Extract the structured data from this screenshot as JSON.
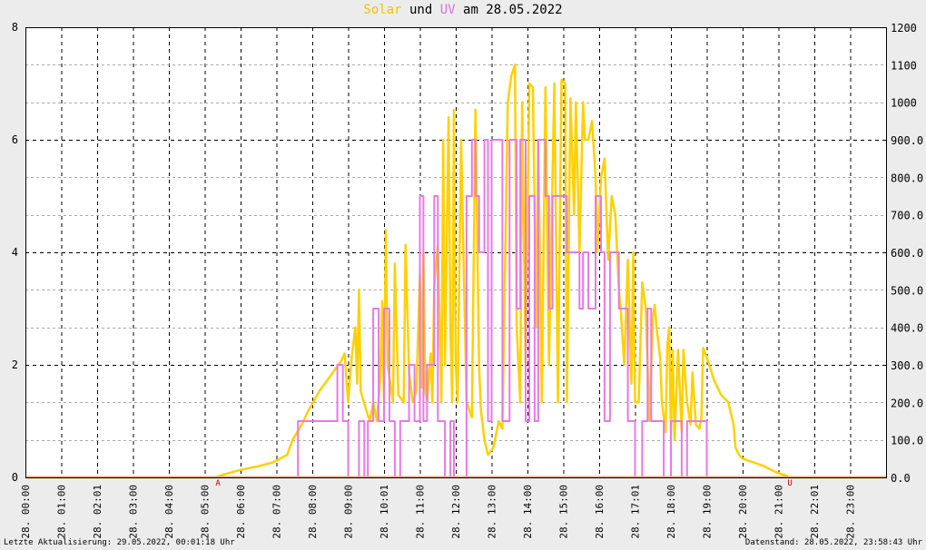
{
  "title": {
    "solar": "Solar",
    "und": "und",
    "uv": "UV",
    "rest": "am 28.05.2022"
  },
  "footer": {
    "left": "Letzte Aktualisierung: 29.05.2022, 00:01:18 Uhr",
    "right": "Datenstand: 28.05.2022, 23:58:43 Uhr"
  },
  "colors": {
    "solar": "#ffd000",
    "uv": "#e878e8",
    "overlap": "#f2a47a",
    "background": "#ececec",
    "plot_background": "#ffffff",
    "grid": "#000000"
  },
  "chart_data": {
    "type": "line",
    "title": "Solar und UV am 28.05.2022",
    "grid": true,
    "x_range_hours": [
      0,
      24
    ],
    "y_left": {
      "min": 0,
      "max": 8,
      "ticks": [
        "0",
        "2",
        "4",
        "6",
        "8"
      ]
    },
    "y_right": {
      "min": 0,
      "max": 1200,
      "ticks": [
        "0.0",
        "100.0",
        "200.0",
        "300.0",
        "400.0",
        "500.0",
        "600.0",
        "700.0",
        "800.0",
        "900.0",
        "1000",
        "1100",
        "1200"
      ]
    },
    "x_tick_labels": [
      "28. 00:00",
      "28. 01:00",
      "28. 02:01",
      "28. 03:00",
      "28. 04:00",
      "28. 05:00",
      "28. 06:00",
      "28. 07:00",
      "28. 08:00",
      "28. 09:00",
      "28. 10:01",
      "28. 11:00",
      "28. 12:00",
      "28. 13:00",
      "28. 14:00",
      "28. 15:00",
      "28. 16:00",
      "28. 17:01",
      "28. 18:00",
      "28. 19:00",
      "28. 20:00",
      "28. 21:00",
      "28. 22:01",
      "28. 23:00"
    ],
    "markers": [
      {
        "label": "A",
        "x_hour": 5.35
      },
      {
        "label": "U",
        "x_hour": 21.3
      }
    ],
    "series": [
      {
        "name": "Solar",
        "axis": "right",
        "color": "#ffd000",
        "points": [
          [
            0,
            0
          ],
          [
            5.3,
            0
          ],
          [
            5.6,
            10
          ],
          [
            6,
            20
          ],
          [
            6.5,
            30
          ],
          [
            6.9,
            40
          ],
          [
            7.1,
            50
          ],
          [
            7.3,
            60
          ],
          [
            7.45,
            100
          ],
          [
            7.7,
            140
          ],
          [
            7.9,
            180
          ],
          [
            8.2,
            230
          ],
          [
            8.5,
            270
          ],
          [
            8.8,
            310
          ],
          [
            8.9,
            330
          ],
          [
            9.0,
            200
          ],
          [
            9.1,
            320
          ],
          [
            9.2,
            400
          ],
          [
            9.25,
            250
          ],
          [
            9.3,
            500
          ],
          [
            9.35,
            230
          ],
          [
            9.5,
            180
          ],
          [
            9.6,
            150
          ],
          [
            9.7,
            200
          ],
          [
            9.8,
            150
          ],
          [
            9.9,
            270
          ],
          [
            9.95,
            470
          ],
          [
            10.0,
            200
          ],
          [
            10.05,
            660
          ],
          [
            10.1,
            300
          ],
          [
            10.25,
            200
          ],
          [
            10.3,
            570
          ],
          [
            10.4,
            220
          ],
          [
            10.55,
            200
          ],
          [
            10.6,
            620
          ],
          [
            10.7,
            280
          ],
          [
            10.8,
            200
          ],
          [
            10.9,
            230
          ],
          [
            11.0,
            540
          ],
          [
            11.05,
            240
          ],
          [
            11.1,
            600
          ],
          [
            11.15,
            230
          ],
          [
            11.2,
            200
          ],
          [
            11.3,
            330
          ],
          [
            11.35,
            200
          ],
          [
            11.4,
            510
          ],
          [
            11.5,
            620
          ],
          [
            11.6,
            200
          ],
          [
            11.65,
            900
          ],
          [
            11.7,
            300
          ],
          [
            11.8,
            960
          ],
          [
            11.85,
            400
          ],
          [
            11.9,
            200
          ],
          [
            11.95,
            980
          ],
          [
            12.0,
            300
          ],
          [
            12.05,
            200
          ],
          [
            12.15,
            900
          ],
          [
            12.3,
            200
          ],
          [
            12.45,
            160
          ],
          [
            12.55,
            980
          ],
          [
            12.65,
            300
          ],
          [
            12.7,
            180
          ],
          [
            12.8,
            100
          ],
          [
            12.9,
            60
          ],
          [
            13.05,
            80
          ],
          [
            13.2,
            150
          ],
          [
            13.3,
            130
          ],
          [
            13.45,
            1000
          ],
          [
            13.55,
            1070
          ],
          [
            13.65,
            1100
          ],
          [
            13.7,
            400
          ],
          [
            13.8,
            200
          ],
          [
            13.85,
            1000
          ],
          [
            13.95,
            300
          ],
          [
            14.05,
            1050
          ],
          [
            14.15,
            1040
          ],
          [
            14.25,
            400
          ],
          [
            14.3,
            900
          ],
          [
            14.4,
            200
          ],
          [
            14.5,
            1040
          ],
          [
            14.6,
            300
          ],
          [
            14.7,
            800
          ],
          [
            14.75,
            1050
          ],
          [
            14.85,
            200
          ],
          [
            14.95,
            1060
          ],
          [
            15.05,
            1050
          ],
          [
            15.1,
            200
          ],
          [
            15.2,
            1010
          ],
          [
            15.3,
            700
          ],
          [
            15.35,
            1000
          ],
          [
            15.45,
            600
          ],
          [
            15.55,
            1000
          ],
          [
            15.6,
            900
          ],
          [
            15.7,
            900
          ],
          [
            15.8,
            950
          ],
          [
            15.9,
            800
          ],
          [
            15.95,
            600
          ],
          [
            16.05,
            800
          ],
          [
            16.15,
            850
          ],
          [
            16.25,
            580
          ],
          [
            16.35,
            750
          ],
          [
            16.45,
            700
          ],
          [
            16.55,
            500
          ],
          [
            16.6,
            450
          ],
          [
            16.7,
            300
          ],
          [
            16.8,
            580
          ],
          [
            16.85,
            400
          ],
          [
            16.9,
            250
          ],
          [
            16.95,
            600
          ],
          [
            17.0,
            200
          ],
          [
            17.1,
            200
          ],
          [
            17.2,
            520
          ],
          [
            17.3,
            450
          ],
          [
            17.35,
            300
          ],
          [
            17.4,
            150
          ],
          [
            17.5,
            430
          ],
          [
            17.55,
            460
          ],
          [
            17.6,
            400
          ],
          [
            17.7,
            320
          ],
          [
            17.75,
            200
          ],
          [
            17.85,
            120
          ],
          [
            17.9,
            350
          ],
          [
            17.95,
            400
          ],
          [
            18.0,
            120
          ],
          [
            18.05,
            340
          ],
          [
            18.1,
            100
          ],
          [
            18.2,
            340
          ],
          [
            18.3,
            120
          ],
          [
            18.35,
            340
          ],
          [
            18.45,
            200
          ],
          [
            18.55,
            140
          ],
          [
            18.6,
            280
          ],
          [
            18.7,
            140
          ],
          [
            18.8,
            130
          ],
          [
            18.85,
            160
          ],
          [
            18.9,
            345
          ],
          [
            19.0,
            320
          ],
          [
            19.2,
            260
          ],
          [
            19.4,
            220
          ],
          [
            19.6,
            200
          ],
          [
            19.75,
            140
          ],
          [
            19.8,
            80
          ],
          [
            19.9,
            60
          ],
          [
            20.0,
            50
          ],
          [
            20.3,
            40
          ],
          [
            20.6,
            30
          ],
          [
            20.9,
            15
          ],
          [
            21.2,
            5
          ],
          [
            21.3,
            0
          ],
          [
            24,
            0
          ]
        ]
      },
      {
        "name": "UV",
        "axis": "left",
        "color": "#e878e8",
        "points": [
          [
            0,
            0
          ],
          [
            7.6,
            0
          ],
          [
            7.6,
            1
          ],
          [
            8.7,
            1
          ],
          [
            8.7,
            2
          ],
          [
            8.85,
            2
          ],
          [
            8.85,
            1
          ],
          [
            9.0,
            1
          ],
          [
            9.0,
            0
          ],
          [
            9.3,
            0
          ],
          [
            9.3,
            1
          ],
          [
            9.45,
            1
          ],
          [
            9.45,
            0
          ],
          [
            9.55,
            0
          ],
          [
            9.55,
            1
          ],
          [
            9.7,
            1
          ],
          [
            9.7,
            3
          ],
          [
            9.85,
            3
          ],
          [
            9.85,
            1
          ],
          [
            10.0,
            1
          ],
          [
            10.0,
            3
          ],
          [
            10.15,
            3
          ],
          [
            10.15,
            1
          ],
          [
            10.3,
            1
          ],
          [
            10.3,
            0
          ],
          [
            10.45,
            0
          ],
          [
            10.45,
            1
          ],
          [
            10.7,
            1
          ],
          [
            10.7,
            2
          ],
          [
            10.85,
            2
          ],
          [
            10.85,
            1
          ],
          [
            11.0,
            1
          ],
          [
            11.0,
            5
          ],
          [
            11.1,
            5
          ],
          [
            11.1,
            1
          ],
          [
            11.2,
            1
          ],
          [
            11.2,
            2
          ],
          [
            11.4,
            2
          ],
          [
            11.4,
            5
          ],
          [
            11.5,
            5
          ],
          [
            11.5,
            1
          ],
          [
            11.7,
            1
          ],
          [
            11.7,
            0
          ],
          [
            11.85,
            0
          ],
          [
            11.85,
            1
          ],
          [
            11.95,
            1
          ],
          [
            11.95,
            0
          ],
          [
            12.3,
            0
          ],
          [
            12.3,
            5
          ],
          [
            12.45,
            5
          ],
          [
            12.45,
            6
          ],
          [
            12.55,
            6
          ],
          [
            12.55,
            5
          ],
          [
            12.65,
            5
          ],
          [
            12.65,
            4
          ],
          [
            12.8,
            4
          ],
          [
            12.8,
            6
          ],
          [
            12.9,
            6
          ],
          [
            12.9,
            1
          ],
          [
            13.0,
            1
          ],
          [
            13.0,
            6
          ],
          [
            13.3,
            6
          ],
          [
            13.3,
            1
          ],
          [
            13.5,
            1
          ],
          [
            13.5,
            6
          ],
          [
            13.7,
            6
          ],
          [
            13.7,
            3
          ],
          [
            13.8,
            3
          ],
          [
            13.8,
            6
          ],
          [
            13.95,
            6
          ],
          [
            13.95,
            1
          ],
          [
            14.05,
            1
          ],
          [
            14.05,
            5
          ],
          [
            14.2,
            5
          ],
          [
            14.2,
            1
          ],
          [
            14.3,
            1
          ],
          [
            14.3,
            6
          ],
          [
            14.5,
            6
          ],
          [
            14.5,
            5
          ],
          [
            14.6,
            5
          ],
          [
            14.6,
            3
          ],
          [
            14.7,
            3
          ],
          [
            14.7,
            5
          ],
          [
            15.1,
            5
          ],
          [
            15.1,
            4
          ],
          [
            15.45,
            4
          ],
          [
            15.45,
            3
          ],
          [
            15.55,
            3
          ],
          [
            15.55,
            4
          ],
          [
            15.7,
            4
          ],
          [
            15.7,
            3
          ],
          [
            15.9,
            3
          ],
          [
            15.9,
            5
          ],
          [
            16.05,
            5
          ],
          [
            16.05,
            4
          ],
          [
            16.15,
            4
          ],
          [
            16.15,
            1
          ],
          [
            16.3,
            1
          ],
          [
            16.3,
            4
          ],
          [
            16.55,
            4
          ],
          [
            16.55,
            3
          ],
          [
            16.8,
            3
          ],
          [
            16.8,
            1
          ],
          [
            17.0,
            1
          ],
          [
            17.0,
            0
          ],
          [
            17.2,
            0
          ],
          [
            17.2,
            1
          ],
          [
            17.35,
            1
          ],
          [
            17.35,
            3
          ],
          [
            17.45,
            3
          ],
          [
            17.45,
            1
          ],
          [
            17.8,
            1
          ],
          [
            17.8,
            0
          ],
          [
            18.0,
            0
          ],
          [
            18.0,
            1
          ],
          [
            18.3,
            1
          ],
          [
            18.3,
            0
          ],
          [
            18.45,
            0
          ],
          [
            18.45,
            1
          ],
          [
            19.0,
            1
          ],
          [
            19.0,
            0
          ],
          [
            24,
            0
          ]
        ]
      }
    ]
  }
}
